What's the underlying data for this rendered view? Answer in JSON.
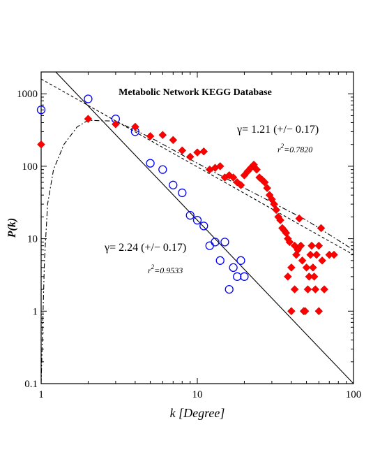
{
  "chart_data": {
    "type": "scatter",
    "title": "Metabolic Network KEGG Database",
    "xlabel": "k [Degree]",
    "ylabel": "P(k)",
    "x_scale": "log",
    "y_scale": "log",
    "xlim": [
      1,
      100
    ],
    "ylim": [
      0.1,
      2000
    ],
    "x_ticks": [
      {
        "value": 1,
        "label": "1"
      },
      {
        "value": 10,
        "label": "10"
      },
      {
        "value": 100,
        "label": "100"
      }
    ],
    "y_ticks": [
      {
        "value": 0.1,
        "label": "0.1"
      },
      {
        "value": 1,
        "label": "1"
      },
      {
        "value": 10,
        "label": "10"
      },
      {
        "value": 100,
        "label": "100"
      },
      {
        "value": 1000,
        "label": "1000"
      }
    ],
    "grid": false,
    "colors": {
      "circles": "#0000ff",
      "diamonds": "#ff0000",
      "lines": "#000000"
    },
    "series": [
      {
        "marker": "open-circle",
        "points": [
          [
            1,
            600
          ],
          [
            2,
            850
          ],
          [
            3,
            450
          ],
          [
            4,
            300
          ],
          [
            5,
            110
          ],
          [
            6,
            90
          ],
          [
            7,
            55
          ],
          [
            8,
            43
          ],
          [
            9,
            21
          ],
          [
            10,
            18
          ],
          [
            11,
            15
          ],
          [
            12,
            8
          ],
          [
            13,
            9
          ],
          [
            14,
            5
          ],
          [
            15,
            9
          ],
          [
            16,
            2
          ],
          [
            17,
            4
          ],
          [
            18,
            3
          ],
          [
            19,
            5
          ],
          [
            20,
            3
          ]
        ]
      },
      {
        "marker": "filled-diamond",
        "points": [
          [
            1,
            200
          ],
          [
            2,
            450
          ],
          [
            3,
            380
          ],
          [
            4,
            350
          ],
          [
            5,
            260
          ],
          [
            6,
            270
          ],
          [
            7,
            230
          ],
          [
            8,
            165
          ],
          [
            9,
            135
          ],
          [
            10,
            155
          ],
          [
            11,
            160
          ],
          [
            12,
            90
          ],
          [
            13,
            95
          ],
          [
            14,
            100
          ],
          [
            15,
            70
          ],
          [
            16,
            75
          ],
          [
            17,
            70
          ],
          [
            18,
            60
          ],
          [
            19,
            55
          ],
          [
            20,
            75
          ],
          [
            21,
            85
          ],
          [
            22,
            95
          ],
          [
            23,
            105
          ],
          [
            24,
            90
          ],
          [
            25,
            70
          ],
          [
            26,
            65
          ],
          [
            27,
            60
          ],
          [
            28,
            50
          ],
          [
            29,
            40
          ],
          [
            30,
            35
          ],
          [
            31,
            30
          ],
          [
            32,
            25
          ],
          [
            33,
            20
          ],
          [
            34,
            18
          ],
          [
            35,
            14
          ],
          [
            36,
            13
          ],
          [
            37,
            12
          ],
          [
            38,
            10
          ],
          [
            39,
            9
          ],
          [
            40,
            1
          ],
          [
            42,
            8
          ],
          [
            43,
            6
          ],
          [
            44,
            7
          ],
          [
            45,
            19
          ],
          [
            46,
            8
          ],
          [
            47,
            5
          ],
          [
            48,
            1
          ],
          [
            50,
            4
          ],
          [
            52,
            3
          ],
          [
            53,
            6
          ],
          [
            54,
            8
          ],
          [
            55,
            4
          ],
          [
            56,
            3
          ],
          [
            57,
            2
          ],
          [
            58,
            6
          ],
          [
            60,
            8
          ],
          [
            62,
            14
          ],
          [
            63,
            5
          ],
          [
            65,
            2
          ],
          [
            70,
            6
          ],
          [
            75,
            6
          ],
          [
            38,
            3
          ],
          [
            40,
            4
          ],
          [
            42,
            2
          ],
          [
            49,
            1
          ],
          [
            51,
            2
          ],
          [
            60,
            1
          ]
        ]
      }
    ],
    "fit_lines": [
      {
        "style": "solid",
        "points": [
          [
            1.24,
            2000
          ],
          [
            100,
            0.1
          ]
        ]
      },
      {
        "style": "dashed",
        "points": [
          [
            1,
            1600
          ],
          [
            100,
            6
          ]
        ]
      },
      {
        "style": "dash-dot",
        "points": [
          [
            1,
            0.1
          ],
          [
            1.05,
            5
          ],
          [
            1.1,
            30
          ],
          [
            1.2,
            90
          ],
          [
            1.4,
            200
          ],
          [
            1.7,
            350
          ],
          [
            2,
            430
          ],
          [
            3,
            420
          ],
          [
            5,
            250
          ],
          [
            10,
            110
          ],
          [
            20,
            50
          ],
          [
            50,
            18
          ],
          [
            100,
            7
          ]
        ]
      }
    ],
    "annotations": [
      {
        "id": "gamma_top",
        "text": "γ= 1.21 (+/− 0.17)"
      },
      {
        "id": "r2_top",
        "base": "r",
        "sup": "2",
        "text": "=0.7820"
      },
      {
        "id": "gamma_bottom",
        "text": "γ= 2.24 (+/− 0.17)"
      },
      {
        "id": "r2_bottom",
        "base": "r",
        "sup": "2",
        "text": "=0.9533"
      }
    ]
  }
}
